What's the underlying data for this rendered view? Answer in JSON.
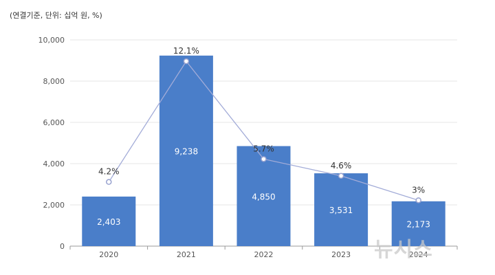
{
  "unit_note": "(연결기준, 단위: 십억 원, %)",
  "watermark": "뉴시스",
  "colors": {
    "bar": "#4a7ec9",
    "line": "#a3acd8",
    "marker_stroke": "#98a2cf",
    "grid": "#e6e6e6",
    "axis": "#999999"
  },
  "chart_data": {
    "type": "bar",
    "categories": [
      "2020",
      "2021",
      "2022",
      "2023",
      "2024"
    ],
    "series": [
      {
        "name": "value",
        "values": [
          2403,
          9238,
          4850,
          3531,
          2173
        ],
        "labels": [
          "2,403",
          "9,238",
          "4,850",
          "3,531",
          "2,173"
        ]
      },
      {
        "name": "percent",
        "type": "line",
        "values": [
          4.2,
          12.1,
          5.7,
          4.6,
          3
        ],
        "labels": [
          "4.2%",
          "12.1%",
          "5.7%",
          "4.6%",
          "3%"
        ]
      }
    ],
    "y_ticks": [
      0,
      2000,
      4000,
      6000,
      8000,
      10000
    ],
    "y_tick_labels": [
      "0",
      "2,000",
      "4,000",
      "6,000",
      "8,000",
      "10,000"
    ],
    "ylim": [
      0,
      10000
    ],
    "y2lim": [
      0,
      13.5
    ],
    "grid": true
  }
}
